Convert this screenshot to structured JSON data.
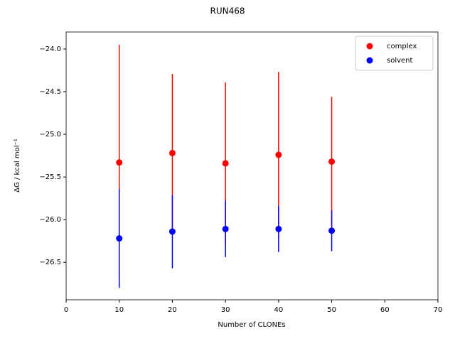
{
  "chart_data": {
    "type": "scatter",
    "title": "RUN468",
    "xlabel": "Number of CLONEs",
    "ylabel": "ΔG / kcal mol⁻¹",
    "x": [
      10,
      20,
      30,
      40,
      50
    ],
    "series": [
      {
        "name": "complex",
        "color": "#ff0000",
        "values": [
          -25.33,
          -25.22,
          -25.34,
          -25.24,
          -25.32
        ],
        "errors": [
          1.38,
          0.93,
          0.95,
          0.97,
          0.76
        ]
      },
      {
        "name": "solvent",
        "color": "#0000ff",
        "values": [
          -26.22,
          -26.14,
          -26.11,
          -26.11,
          -26.13
        ],
        "errors": [
          0.58,
          0.43,
          0.33,
          0.27,
          0.24
        ]
      }
    ],
    "xlim": [
      0,
      70
    ],
    "xticks": [
      0,
      10,
      20,
      30,
      40,
      50,
      60,
      70
    ],
    "ylim": [
      -26.94,
      -23.8
    ],
    "yticks": [
      {
        "value": -26.5,
        "label": "−26.5"
      },
      {
        "value": -26,
        "label": "−26.0"
      },
      {
        "value": -25.5,
        "label": "−25.5"
      },
      {
        "value": -25,
        "label": "−25.0"
      },
      {
        "value": -24.5,
        "label": "−24.5"
      },
      {
        "value": -24,
        "label": "−24.0"
      }
    ],
    "grid": false,
    "legend": "upper right"
  }
}
